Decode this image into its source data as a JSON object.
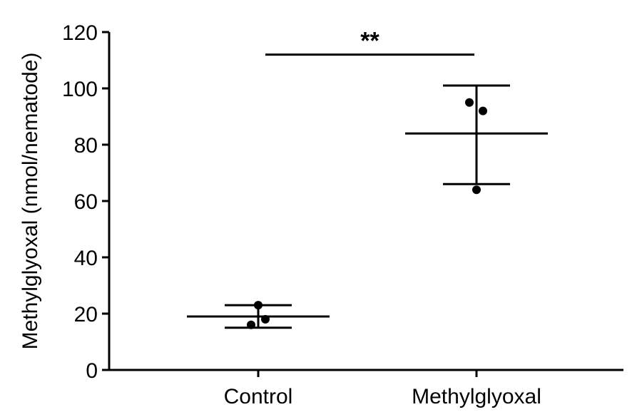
{
  "chart_data": {
    "type": "scatter",
    "categories": [
      "Control",
      "Methylglyoxal"
    ],
    "ylabel": "Methylglyoxal (nmol/nematode)",
    "ylim": [
      0,
      120
    ],
    "yticks": [
      0,
      20,
      40,
      60,
      80,
      100,
      120
    ],
    "groups": [
      {
        "category": "Control",
        "mean": 19,
        "upper": 23,
        "lower": 15,
        "points": [
          23,
          18,
          16
        ]
      },
      {
        "category": "Methylglyoxal",
        "mean": 84,
        "upper": 101,
        "lower": 66,
        "points": [
          95,
          92,
          64
        ]
      }
    ],
    "significance": {
      "label": "**",
      "from": "Control",
      "to": "Methylglyoxal",
      "y": 112
    },
    "grid": false,
    "legend": "none",
    "colors": {
      "ink": "#000000"
    }
  }
}
